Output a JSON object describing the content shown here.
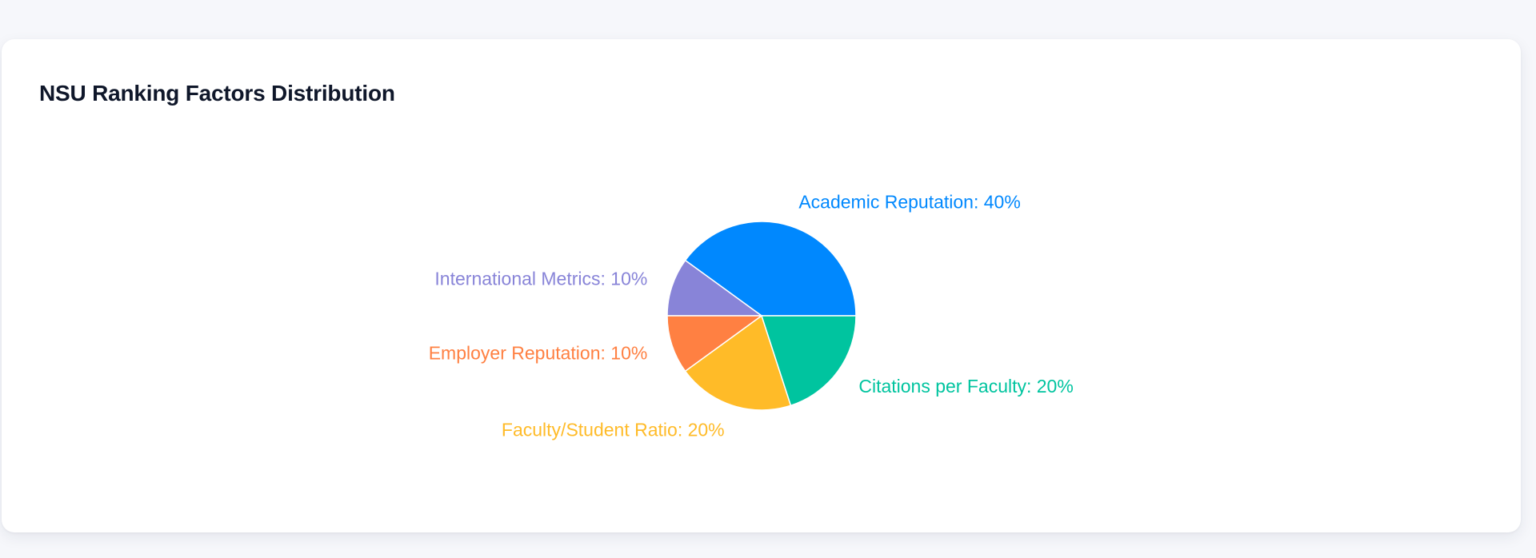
{
  "card": {
    "title": "NSU Ranking Factors Distribution"
  },
  "chart_data": {
    "type": "pie",
    "title": "NSU Ranking Factors Distribution",
    "slices": [
      {
        "label": "Academic Reputation",
        "value": 40,
        "color": "#0088fe",
        "display": "Academic Reputation: 40%"
      },
      {
        "label": "International Metrics",
        "value": 10,
        "color": "#8884d8",
        "display": "International Metrics: 10%"
      },
      {
        "label": "Employer Reputation",
        "value": 10,
        "color": "#ff8042",
        "display": "Employer Reputation: 10%"
      },
      {
        "label": "Faculty/Student Ratio",
        "value": 20,
        "color": "#ffbb28",
        "display": "Faculty/Student Ratio: 20%"
      },
      {
        "label": "Citations per Faculty",
        "value": 20,
        "color": "#00c49f",
        "display": "Citations per Faculty: 20%"
      }
    ],
    "start_angle_deg": 0,
    "direction": "counterclockwise",
    "legend": "none",
    "labels": "outside"
  }
}
